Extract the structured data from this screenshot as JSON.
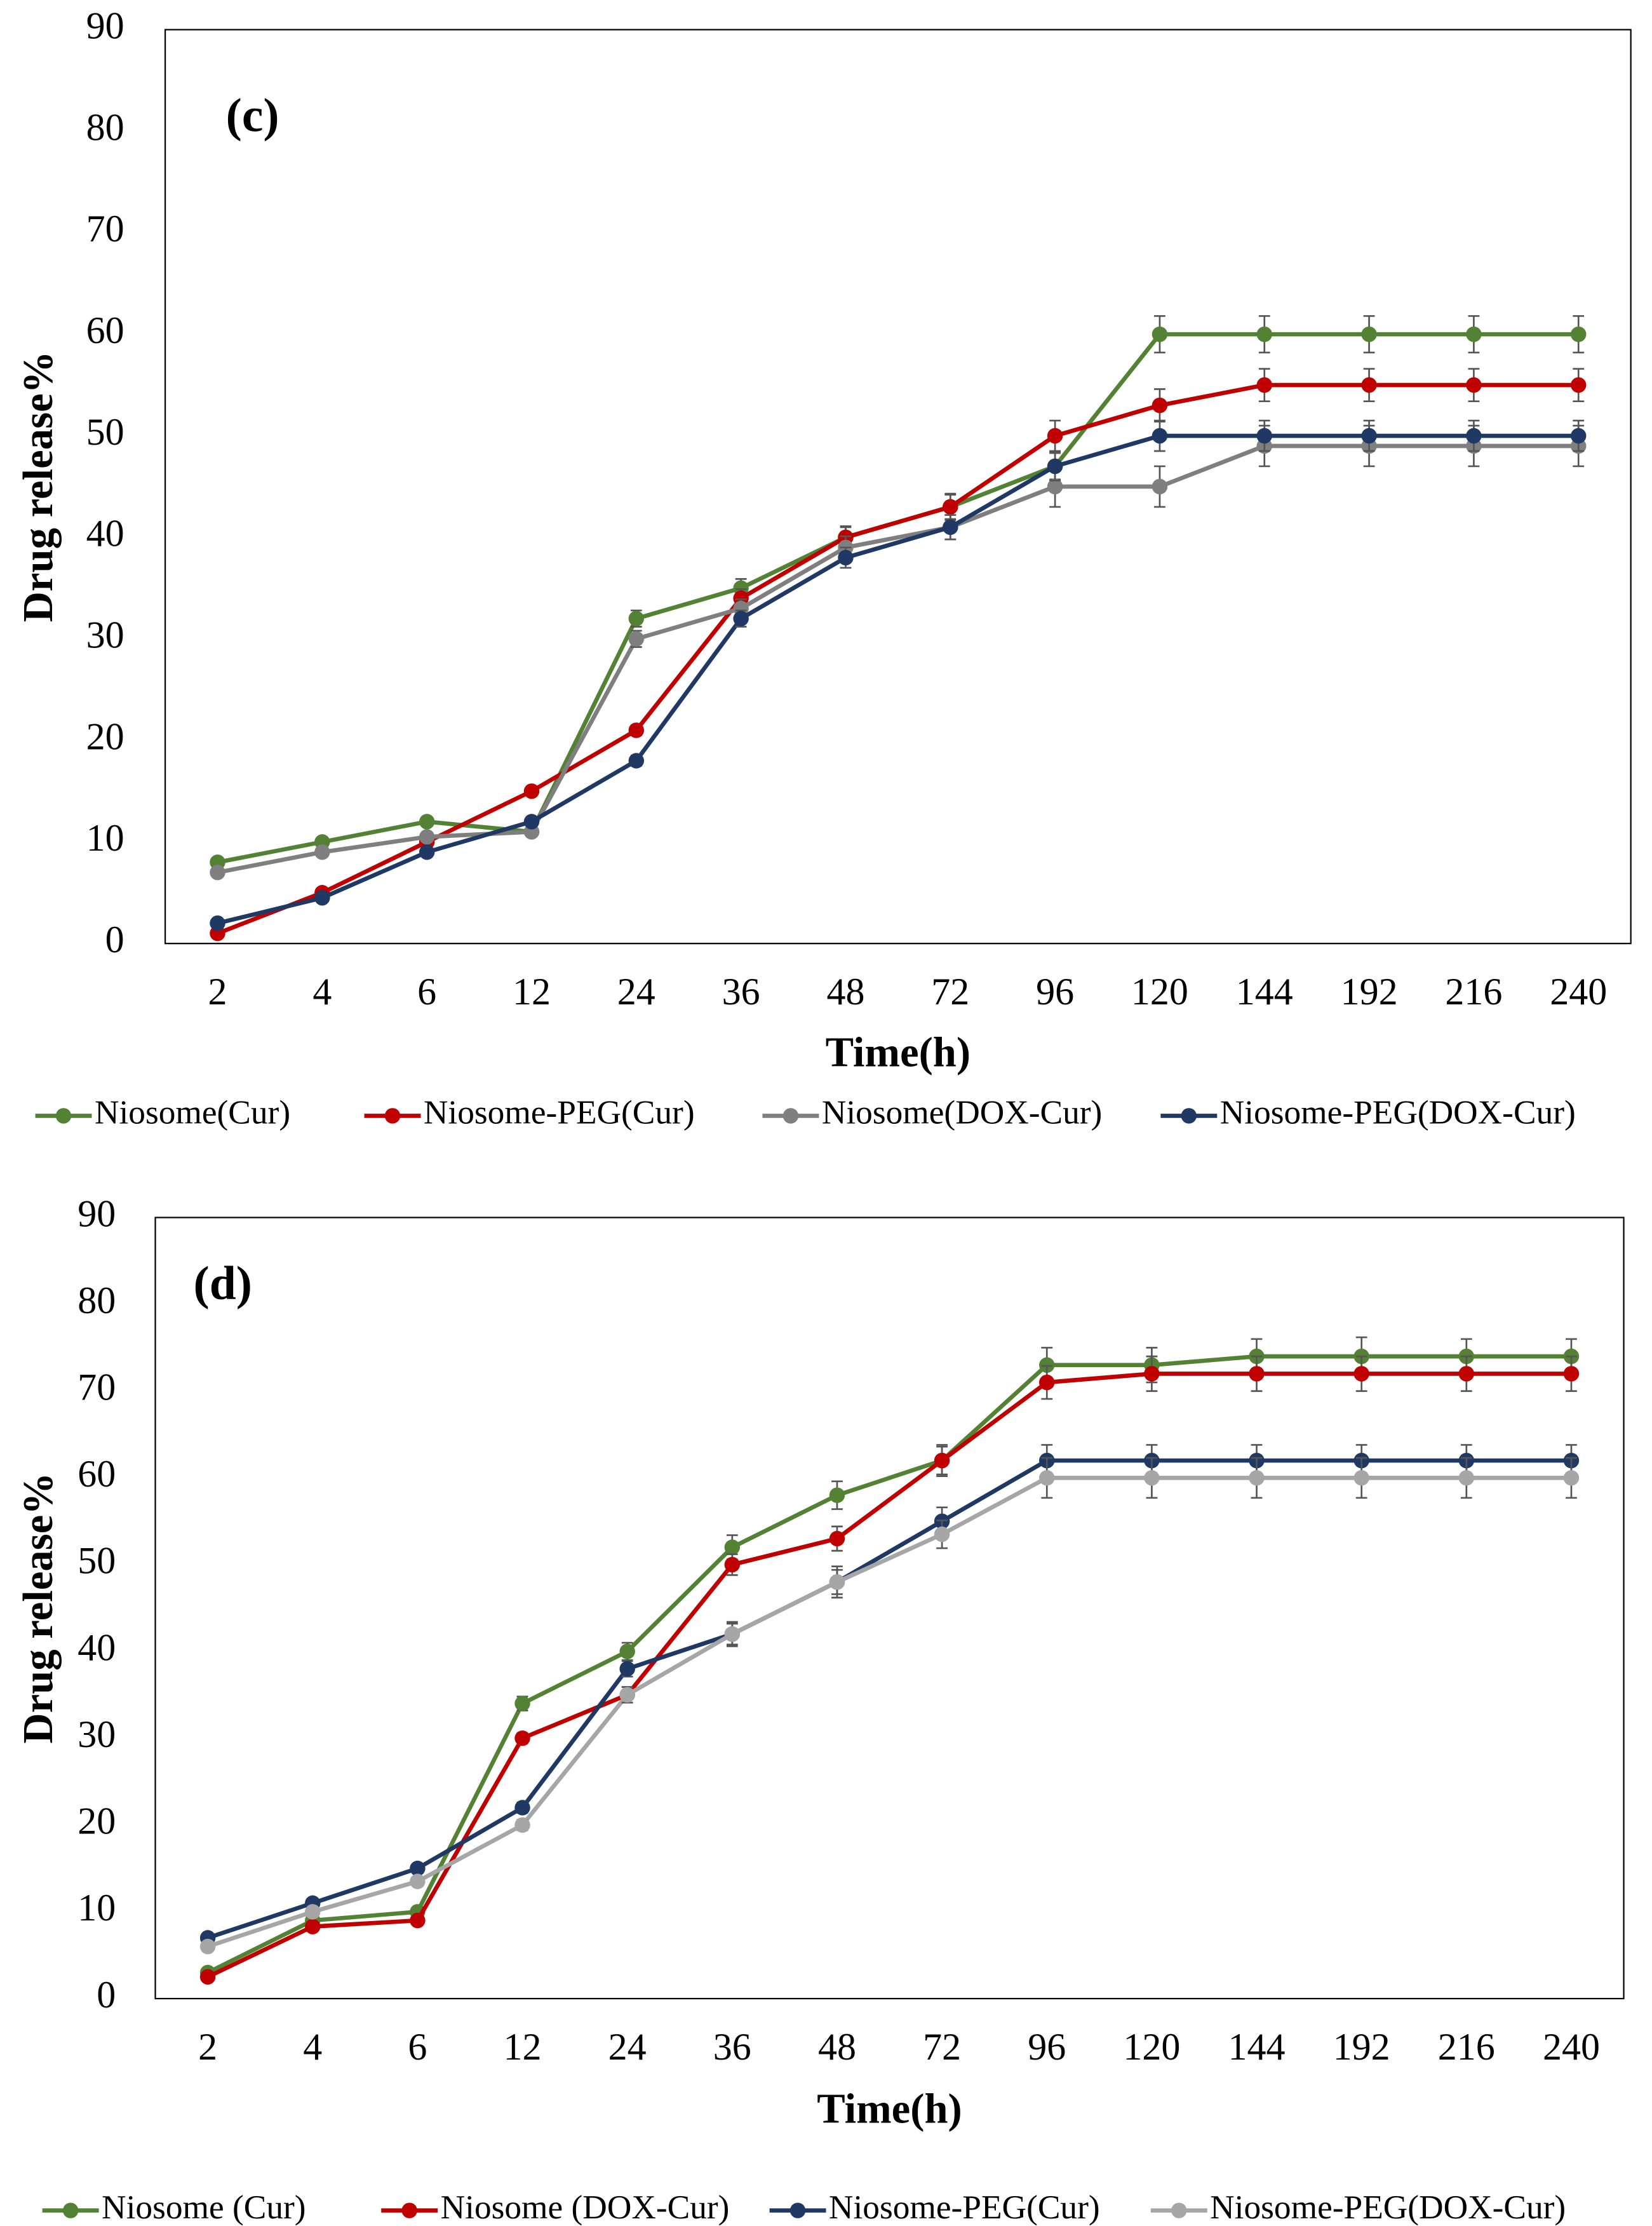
{
  "chart_data": [
    {
      "type": "line",
      "annotation": "(c)",
      "x_label": "Time(h)",
      "y_label": "Drug release%",
      "categories": [
        "2",
        "4",
        "6",
        "12",
        "24",
        "36",
        "48",
        "72",
        "96",
        "120",
        "144",
        "192",
        "216",
        "240"
      ],
      "ylim": [
        0,
        90
      ],
      "yticks": [
        0,
        10,
        20,
        30,
        40,
        50,
        60,
        70,
        80,
        90
      ],
      "grid": false,
      "series": [
        {
          "name": "Niosome(Cur)",
          "color": "#548235",
          "values": [
            8,
            10,
            12,
            11,
            32,
            35,
            40,
            43,
            47,
            60,
            60,
            60,
            60,
            60
          ],
          "errors": [
            0.3,
            0.3,
            0.3,
            0.3,
            0.8,
            0.9,
            1,
            1.2,
            1.3,
            1.8,
            1.8,
            1.8,
            1.8,
            1.8
          ]
        },
        {
          "name": "Niosome-PEG(Cur)",
          "color": "#c00000",
          "values": [
            1,
            5,
            10,
            15,
            21,
            34,
            40,
            43,
            50,
            53,
            55,
            55,
            55,
            55
          ],
          "errors": [
            0.2,
            0.3,
            0.3,
            0.4,
            0.5,
            0.9,
            1.1,
            1.3,
            1.5,
            1.6,
            1.6,
            1.6,
            1.6,
            1.6
          ]
        },
        {
          "name": "Niosome(DOX-Cur)",
          "color": "#7f7f7f",
          "values": [
            7,
            9,
            10.5,
            11,
            30,
            33,
            39,
            41,
            45,
            45,
            49,
            49,
            49,
            49
          ],
          "errors": [
            0.3,
            0.3,
            0.3,
            0.3,
            0.8,
            0.9,
            1.1,
            1.2,
            2,
            2,
            2,
            2,
            2,
            2
          ]
        },
        {
          "name": "Niosome-PEG(DOX-Cur)",
          "color": "#1f3864",
          "values": [
            2,
            4.5,
            9,
            12,
            18,
            32,
            38,
            41,
            47,
            50,
            50,
            50,
            50,
            50
          ],
          "errors": [
            0.2,
            0.2,
            0.3,
            0.3,
            0.5,
            0.8,
            1,
            1.2,
            1.4,
            1.5,
            1.5,
            1.5,
            1.5,
            1.5
          ]
        }
      ]
    },
    {
      "type": "line",
      "annotation": "(d)",
      "x_label": "Time(h)",
      "y_label": "Drug release%",
      "categories": [
        "2",
        "4",
        "6",
        "12",
        "24",
        "36",
        "48",
        "72",
        "96",
        "120",
        "144",
        "192",
        "216",
        "240"
      ],
      "ylim": [
        0,
        90
      ],
      "yticks": [
        0,
        10,
        20,
        30,
        40,
        50,
        60,
        70,
        80,
        90
      ],
      "grid": false,
      "series": [
        {
          "name": "Niosome (Cur)",
          "color": "#548235",
          "values": [
            3,
            9,
            10,
            34,
            40,
            52,
            58,
            62,
            73,
            73,
            74,
            74,
            74,
            74
          ],
          "errors": [
            0.3,
            0.3,
            0.3,
            0.8,
            1,
            1.4,
            1.6,
            1.8,
            2,
            2,
            2,
            2.2,
            2,
            2
          ]
        },
        {
          "name": "Niosome (DOX-Cur)",
          "color": "#c00000",
          "values": [
            2.5,
            8.3,
            9,
            30,
            35,
            50,
            53,
            62,
            71,
            72,
            72,
            72,
            72,
            72
          ],
          "errors": [
            0.2,
            0.3,
            0.3,
            0.6,
            0.9,
            1.2,
            1.4,
            1.6,
            1.9,
            2,
            2,
            2,
            2,
            2
          ]
        },
        {
          "name": "Niosome-PEG(Cur)",
          "color": "#1f3864",
          "values": [
            7,
            11,
            15,
            22,
            38,
            42,
            48,
            55,
            62,
            62,
            62,
            62,
            62,
            62
          ],
          "errors": [
            0.3,
            0.3,
            0.4,
            0.6,
            0.9,
            1.2,
            1.4,
            1.6,
            1.8,
            1.8,
            1.8,
            1.8,
            1.8,
            1.8
          ]
        },
        {
          "name": "Niosome-PEG(DOX-Cur)",
          "color": "#a6a6a6",
          "values": [
            6,
            10,
            13.5,
            20,
            35,
            42,
            48,
            53.5,
            60,
            60,
            60,
            60,
            60,
            60
          ],
          "errors": [
            0.3,
            0.3,
            0.4,
            0.6,
            0.9,
            1.4,
            1.8,
            1.6,
            2.3,
            2.3,
            2.3,
            2.3,
            2.3,
            2.3
          ]
        }
      ]
    }
  ]
}
